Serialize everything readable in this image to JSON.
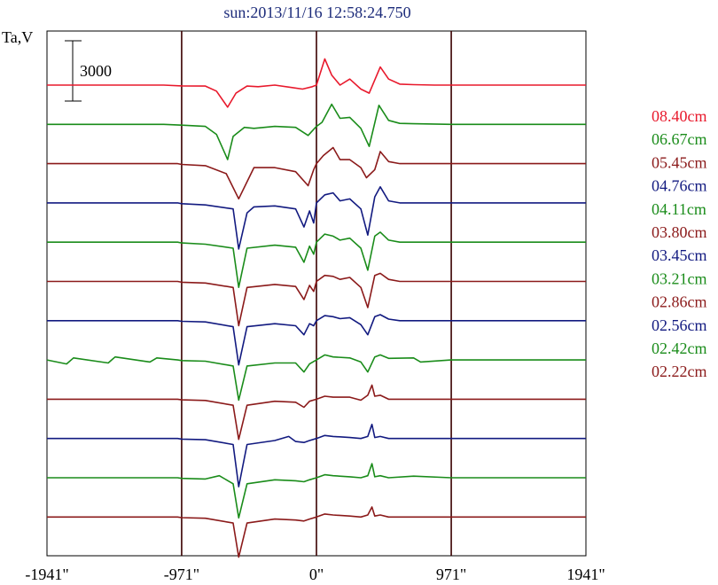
{
  "title": "sun:2013/11/16 12:58:24.750",
  "ylabel": "Ta,V",
  "scale_bar": {
    "label": "3000",
    "value": 3000
  },
  "colors": {
    "red": "#e8192c",
    "green": "#1a8c1a",
    "maroon": "#8b1a1a",
    "navy": "#121a80"
  },
  "chart_data": {
    "type": "line",
    "title": "sun:2013/11/16 12:58:24.750",
    "ylabel": "Ta,V",
    "xlabel": "",
    "xlim": [
      -1941,
      1941
    ],
    "x_ticks": [
      {
        "value": -1941,
        "label": "-1941\""
      },
      {
        "value": -971,
        "label": "-971\""
      },
      {
        "value": 0,
        "label": "0\""
      },
      {
        "value": 971,
        "label": "971\""
      },
      {
        "value": 1941,
        "label": "1941\""
      }
    ],
    "vertical_lines": [
      -971,
      0,
      971
    ],
    "grid": false,
    "legend": "right",
    "series": [
      {
        "name": "08.40cm",
        "color": "#e8192c",
        "baseline": 0,
        "x": [
          -1941,
          -1100,
          -971,
          -800,
          -720,
          -640,
          -580,
          -500,
          -420,
          -300,
          -180,
          -100,
          -30,
          0,
          60,
          110,
          170,
          240,
          320,
          380,
          460,
          520,
          600,
          700,
          850,
          971,
          1941
        ],
        "y": [
          0,
          0,
          -40,
          -50,
          -300,
          -1100,
          -400,
          -50,
          -80,
          0,
          -120,
          -200,
          -80,
          0,
          1300,
          500,
          0,
          300,
          -200,
          -400,
          900,
          300,
          50,
          20,
          0,
          0,
          0
        ]
      },
      {
        "name": "06.67cm",
        "color": "#1a8c1a",
        "baseline": 0,
        "x": [
          -1941,
          -1100,
          -971,
          -800,
          -720,
          -640,
          -600,
          -520,
          -450,
          -300,
          -150,
          -60,
          0,
          40,
          110,
          170,
          240,
          320,
          380,
          450,
          520,
          600,
          700,
          971,
          1941
        ],
        "y": [
          0,
          0,
          -40,
          -100,
          -500,
          -1750,
          -600,
          -150,
          -200,
          -100,
          -150,
          -550,
          -100,
          100,
          1000,
          300,
          350,
          -200,
          -1100,
          950,
          200,
          50,
          30,
          0,
          0
        ]
      },
      {
        "name": "05.45cm",
        "color": "#8b1a1a",
        "baseline": 0,
        "x": [
          -1941,
          -1000,
          -971,
          -800,
          -650,
          -560,
          -450,
          -300,
          -150,
          -60,
          -20,
          0,
          50,
          120,
          170,
          240,
          320,
          360,
          420,
          460,
          520,
          600,
          971,
          1941
        ],
        "y": [
          0,
          0,
          -40,
          -100,
          -500,
          -1750,
          -200,
          -200,
          -400,
          -1100,
          -300,
          0,
          400,
          800,
          200,
          200,
          -200,
          -700,
          -300,
          600,
          100,
          0,
          0,
          0
        ]
      },
      {
        "name": "04.76cm",
        "color": "#121a80",
        "baseline": 0,
        "x": [
          -1941,
          -1000,
          -971,
          -800,
          -600,
          -560,
          -500,
          -450,
          -300,
          -150,
          -90,
          -50,
          -20,
          0,
          60,
          120,
          170,
          240,
          320,
          370,
          420,
          460,
          520,
          600,
          971,
          1941
        ],
        "y": [
          0,
          0,
          -40,
          -100,
          -300,
          -2300,
          -500,
          -200,
          -150,
          -300,
          -1200,
          -400,
          -1000,
          0,
          400,
          500,
          100,
          200,
          -300,
          -1600,
          300,
          800,
          100,
          0,
          0,
          0
        ]
      },
      {
        "name": "04.11cm",
        "color": "#1a8c1a",
        "baseline": 0,
        "x": [
          -1941,
          -1000,
          -971,
          -800,
          -600,
          -560,
          -500,
          -300,
          -150,
          -90,
          -50,
          -20,
          0,
          60,
          120,
          170,
          240,
          320,
          370,
          420,
          460,
          520,
          600,
          971,
          1941
        ],
        "y": [
          0,
          0,
          -40,
          -100,
          -300,
          -2250,
          -300,
          -150,
          -250,
          -1000,
          -200,
          -600,
          0,
          400,
          300,
          100,
          200,
          -300,
          -1400,
          300,
          500,
          100,
          0,
          0,
          0
        ]
      },
      {
        "name": "03.80cm",
        "color": "#8b1a1a",
        "baseline": 0,
        "x": [
          -1941,
          -1000,
          -971,
          -800,
          -600,
          -560,
          -500,
          -300,
          -150,
          -90,
          -50,
          -20,
          0,
          60,
          120,
          170,
          240,
          320,
          370,
          420,
          460,
          520,
          600,
          971,
          1941
        ],
        "y": [
          0,
          0,
          -40,
          -80,
          -300,
          -2200,
          -300,
          -150,
          -250,
          -900,
          -200,
          -500,
          0,
          300,
          250,
          100,
          200,
          -300,
          -1300,
          300,
          400,
          100,
          0,
          0,
          0
        ]
      },
      {
        "name": "03.45cm",
        "color": "#121a80",
        "baseline": 0,
        "x": [
          -1941,
          -1000,
          -971,
          -800,
          -600,
          -560,
          -500,
          -300,
          -150,
          -90,
          -50,
          -20,
          0,
          60,
          120,
          170,
          240,
          320,
          370,
          420,
          460,
          520,
          600,
          971,
          1941
        ],
        "y": [
          0,
          0,
          -30,
          -60,
          -300,
          -2200,
          -300,
          -150,
          -250,
          -700,
          -150,
          -250,
          0,
          250,
          200,
          100,
          150,
          -200,
          -700,
          200,
          300,
          80,
          0,
          0,
          0
        ]
      },
      {
        "name": "03.21cm",
        "color": "#1a8c1a",
        "baseline": 0,
        "x": [
          -1941,
          -1800,
          -1750,
          -1500,
          -1450,
          -1200,
          -1150,
          -1000,
          -971,
          -800,
          -600,
          -560,
          -500,
          -300,
          -150,
          -90,
          -50,
          0,
          60,
          120,
          240,
          320,
          370,
          420,
          460,
          520,
          700,
          750,
          971,
          1941
        ],
        "y": [
          0,
          -200,
          100,
          -150,
          150,
          -100,
          100,
          0,
          -30,
          -60,
          -300,
          -2000,
          -300,
          -150,
          -150,
          -600,
          -200,
          0,
          250,
          150,
          100,
          -100,
          -600,
          150,
          250,
          80,
          100,
          -100,
          0,
          0
        ]
      },
      {
        "name": "02.86cm",
        "color": "#8b1a1a",
        "baseline": 0,
        "x": [
          -1941,
          -1000,
          -971,
          -800,
          -600,
          -560,
          -500,
          -300,
          -150,
          -90,
          -50,
          0,
          60,
          120,
          240,
          320,
          370,
          400,
          420,
          460,
          520,
          971,
          1941
        ],
        "y": [
          0,
          0,
          -30,
          -60,
          -300,
          -2000,
          -300,
          -100,
          -150,
          -400,
          -100,
          0,
          150,
          100,
          100,
          -50,
          200,
          700,
          150,
          200,
          0,
          0,
          0
        ]
      },
      {
        "name": "02.56cm",
        "color": "#121a80",
        "baseline": 0,
        "x": [
          -1941,
          -1000,
          -971,
          -800,
          -600,
          -560,
          -500,
          -300,
          -200,
          -150,
          -90,
          -50,
          0,
          60,
          120,
          240,
          320,
          370,
          400,
          420,
          460,
          520,
          971,
          1941
        ],
        "y": [
          0,
          0,
          -30,
          -60,
          -300,
          -2400,
          -300,
          -100,
          100,
          -150,
          -200,
          -100,
          0,
          150,
          100,
          50,
          0,
          100,
          700,
          50,
          100,
          0,
          0,
          0
        ]
      },
      {
        "name": "02.42cm",
        "color": "#1a8c1a",
        "baseline": 0,
        "x": [
          -1941,
          -1000,
          -971,
          -800,
          -700,
          -600,
          -560,
          -500,
          -300,
          -150,
          -90,
          -50,
          0,
          60,
          120,
          240,
          320,
          370,
          400,
          420,
          460,
          520,
          700,
          971,
          1941
        ],
        "y": [
          0,
          0,
          -30,
          -60,
          100,
          -300,
          -2000,
          -300,
          -100,
          -150,
          -200,
          -100,
          0,
          150,
          100,
          50,
          0,
          100,
          700,
          50,
          100,
          0,
          80,
          0,
          0
        ]
      },
      {
        "name": "02.22cm",
        "color": "#8b1a1a",
        "baseline": 0,
        "x": [
          -1941,
          -1000,
          -971,
          -800,
          -600,
          -560,
          -500,
          -300,
          -150,
          -90,
          -50,
          0,
          60,
          120,
          240,
          320,
          370,
          400,
          420,
          460,
          520,
          971,
          1941
        ],
        "y": [
          0,
          0,
          -30,
          -60,
          -300,
          -2000,
          -300,
          -100,
          -150,
          -200,
          -100,
          0,
          150,
          100,
          50,
          0,
          100,
          500,
          50,
          100,
          0,
          0,
          0
        ]
      }
    ]
  }
}
